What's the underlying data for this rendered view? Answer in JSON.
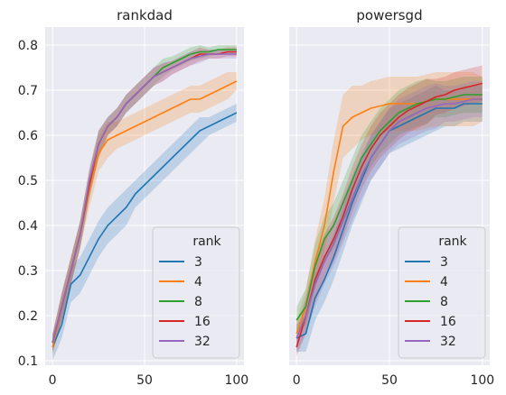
{
  "chart_data": [
    {
      "type": "line",
      "title": "rankdad",
      "xlabel": "",
      "ylabel": "",
      "xlim": [
        -4,
        104
      ],
      "ylim": [
        0.09,
        0.84
      ],
      "xticks": [
        "0",
        "50",
        "100"
      ],
      "yticks": [
        "0.1",
        "0.2",
        "0.3",
        "0.4",
        "0.5",
        "0.6",
        "0.7",
        "0.8"
      ],
      "grid": true,
      "legend_title": "rank",
      "legend_position": "lower-right",
      "x": [
        0,
        5,
        10,
        15,
        20,
        25,
        30,
        35,
        40,
        45,
        50,
        55,
        60,
        65,
        70,
        75,
        80,
        85,
        90,
        95,
        100
      ],
      "series": [
        {
          "name": "3",
          "color": "#1f77b4",
          "values": [
            0.13,
            0.18,
            0.27,
            0.29,
            0.33,
            0.37,
            0.4,
            0.42,
            0.44,
            0.47,
            0.49,
            0.51,
            0.53,
            0.55,
            0.57,
            0.59,
            0.61,
            0.62,
            0.63,
            0.64,
            0.65
          ],
          "band": [
            0.03,
            0.03,
            0.04,
            0.04,
            0.04,
            0.04,
            0.04,
            0.04,
            0.04,
            0.03,
            0.03,
            0.03,
            0.03,
            0.03,
            0.03,
            0.03,
            0.03,
            0.02,
            0.02,
            0.02,
            0.02
          ]
        },
        {
          "name": "4",
          "color": "#ff7f0e",
          "values": [
            0.13,
            0.22,
            0.3,
            0.38,
            0.48,
            0.56,
            0.59,
            0.6,
            0.61,
            0.62,
            0.63,
            0.64,
            0.65,
            0.66,
            0.67,
            0.68,
            0.68,
            0.69,
            0.7,
            0.71,
            0.72
          ],
          "band": [
            0.02,
            0.03,
            0.03,
            0.03,
            0.04,
            0.04,
            0.04,
            0.03,
            0.03,
            0.03,
            0.03,
            0.03,
            0.03,
            0.03,
            0.03,
            0.03,
            0.03,
            0.03,
            0.03,
            0.03,
            0.02
          ]
        },
        {
          "name": "8",
          "color": "#2ca02c",
          "values": [
            0.14,
            0.22,
            0.3,
            0.38,
            0.49,
            0.58,
            0.62,
            0.64,
            0.67,
            0.69,
            0.71,
            0.73,
            0.75,
            0.76,
            0.77,
            0.78,
            0.785,
            0.785,
            0.79,
            0.79,
            0.79
          ],
          "band": [
            0.02,
            0.03,
            0.03,
            0.03,
            0.03,
            0.03,
            0.02,
            0.02,
            0.02,
            0.02,
            0.02,
            0.02,
            0.02,
            0.015,
            0.015,
            0.015,
            0.015,
            0.01,
            0.01,
            0.01,
            0.01
          ]
        },
        {
          "name": "16",
          "color": "#d62728",
          "values": [
            0.14,
            0.22,
            0.3,
            0.38,
            0.49,
            0.58,
            0.62,
            0.64,
            0.67,
            0.69,
            0.71,
            0.73,
            0.74,
            0.75,
            0.76,
            0.77,
            0.78,
            0.78,
            0.78,
            0.785,
            0.785
          ],
          "band": [
            0.02,
            0.03,
            0.03,
            0.03,
            0.03,
            0.03,
            0.02,
            0.02,
            0.02,
            0.02,
            0.02,
            0.02,
            0.02,
            0.015,
            0.015,
            0.015,
            0.015,
            0.01,
            0.01,
            0.01,
            0.01
          ]
        },
        {
          "name": "32",
          "color": "#9467bd",
          "values": [
            0.14,
            0.22,
            0.3,
            0.38,
            0.5,
            0.58,
            0.62,
            0.64,
            0.67,
            0.69,
            0.71,
            0.73,
            0.74,
            0.75,
            0.76,
            0.77,
            0.775,
            0.78,
            0.78,
            0.78,
            0.78
          ],
          "band": [
            0.02,
            0.03,
            0.03,
            0.03,
            0.03,
            0.03,
            0.02,
            0.02,
            0.02,
            0.02,
            0.02,
            0.02,
            0.02,
            0.015,
            0.015,
            0.015,
            0.015,
            0.01,
            0.01,
            0.01,
            0.01
          ]
        }
      ]
    },
    {
      "type": "line",
      "title": "powersgd",
      "xlabel": "",
      "ylabel": "",
      "xlim": [
        -4,
        104
      ],
      "ylim": [
        0.09,
        0.84
      ],
      "xticks": [
        "0",
        "50",
        "100"
      ],
      "yticks": [],
      "grid": true,
      "legend_title": "rank",
      "legend_position": "lower-right",
      "x": [
        0,
        5,
        10,
        15,
        20,
        25,
        30,
        35,
        40,
        45,
        50,
        55,
        60,
        65,
        70,
        75,
        80,
        85,
        90,
        95,
        100
      ],
      "series": [
        {
          "name": "3",
          "color": "#1f77b4",
          "values": [
            0.15,
            0.16,
            0.24,
            0.28,
            0.33,
            0.39,
            0.45,
            0.5,
            0.55,
            0.58,
            0.61,
            0.62,
            0.63,
            0.64,
            0.65,
            0.66,
            0.66,
            0.66,
            0.67,
            0.67,
            0.67
          ],
          "band": [
            0.03,
            0.04,
            0.05,
            0.05,
            0.05,
            0.05,
            0.05,
            0.05,
            0.05,
            0.05,
            0.05,
            0.05,
            0.05,
            0.05,
            0.05,
            0.05,
            0.04,
            0.04,
            0.04,
            0.04,
            0.04
          ]
        },
        {
          "name": "4",
          "color": "#ff7f0e",
          "values": [
            0.16,
            0.22,
            0.32,
            0.4,
            0.52,
            0.62,
            0.64,
            0.65,
            0.66,
            0.665,
            0.67,
            0.67,
            0.67,
            0.67,
            0.675,
            0.68,
            0.68,
            0.68,
            0.68,
            0.68,
            0.68
          ],
          "band": [
            0.03,
            0.04,
            0.05,
            0.06,
            0.07,
            0.07,
            0.07,
            0.06,
            0.06,
            0.06,
            0.06,
            0.06,
            0.06,
            0.06,
            0.06,
            0.06,
            0.06,
            0.06,
            0.06,
            0.06,
            0.05
          ]
        },
        {
          "name": "8",
          "color": "#2ca02c",
          "values": [
            0.19,
            0.22,
            0.31,
            0.37,
            0.4,
            0.45,
            0.5,
            0.55,
            0.58,
            0.61,
            0.63,
            0.65,
            0.66,
            0.67,
            0.675,
            0.68,
            0.68,
            0.685,
            0.69,
            0.69,
            0.69
          ],
          "band": [
            0.03,
            0.04,
            0.05,
            0.05,
            0.05,
            0.05,
            0.05,
            0.05,
            0.05,
            0.05,
            0.05,
            0.05,
            0.05,
            0.05,
            0.05,
            0.04,
            0.04,
            0.04,
            0.04,
            0.04,
            0.04
          ]
        },
        {
          "name": "16",
          "color": "#d62728",
          "values": [
            0.13,
            0.2,
            0.28,
            0.33,
            0.37,
            0.42,
            0.48,
            0.53,
            0.57,
            0.6,
            0.62,
            0.64,
            0.655,
            0.665,
            0.675,
            0.685,
            0.69,
            0.7,
            0.705,
            0.71,
            0.715
          ],
          "band": [
            0.02,
            0.04,
            0.05,
            0.05,
            0.05,
            0.05,
            0.05,
            0.05,
            0.05,
            0.05,
            0.05,
            0.05,
            0.05,
            0.05,
            0.05,
            0.04,
            0.04,
            0.04,
            0.04,
            0.04,
            0.04
          ]
        },
        {
          "name": "32",
          "color": "#9467bd",
          "values": [
            0.15,
            0.2,
            0.27,
            0.32,
            0.36,
            0.41,
            0.46,
            0.51,
            0.55,
            0.58,
            0.61,
            0.63,
            0.64,
            0.65,
            0.66,
            0.665,
            0.67,
            0.67,
            0.675,
            0.68,
            0.68
          ],
          "band": [
            0.03,
            0.04,
            0.05,
            0.05,
            0.05,
            0.05,
            0.05,
            0.05,
            0.05,
            0.05,
            0.05,
            0.05,
            0.05,
            0.05,
            0.05,
            0.05,
            0.04,
            0.04,
            0.04,
            0.04,
            0.04
          ]
        }
      ]
    }
  ]
}
